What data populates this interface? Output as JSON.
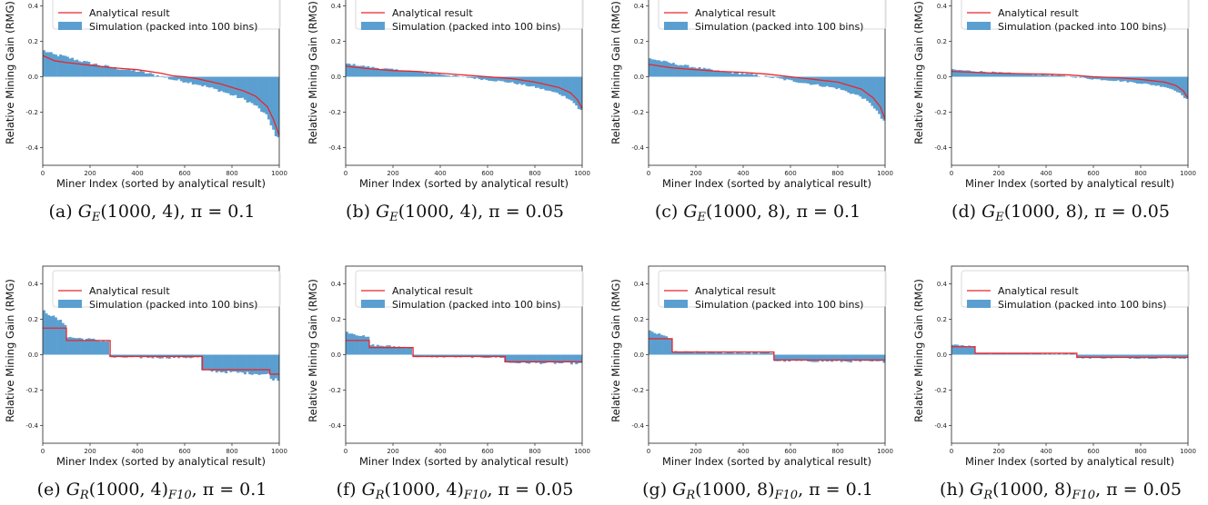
{
  "legend": {
    "line_label": "Analytical result",
    "bar_label": "Simulation (packed into 100 bins)"
  },
  "axes": {
    "xlabel": "Miner Index (sorted by analytical result)",
    "ylabel": "Relative Mining Gain (RMG)",
    "xticks": [
      0,
      200,
      400,
      600,
      800,
      1000
    ],
    "yticks": [
      -0.4,
      -0.2,
      0.0,
      0.2,
      0.4
    ],
    "xlim": [
      0,
      1000
    ],
    "ylim": [
      -0.5,
      0.5
    ]
  },
  "colors": {
    "line": "#e8262b",
    "bar": "#5b9fd0",
    "axis": "#222222"
  },
  "chart_data": [
    {
      "type": "bar",
      "id": "a",
      "caption": [
        "(a) ",
        "G",
        "E",
        "(1000, 4), π = 0.1"
      ],
      "analytical": {
        "kind": "curve",
        "points": [
          [
            0,
            0.12
          ],
          [
            50,
            0.09
          ],
          [
            100,
            0.08
          ],
          [
            200,
            0.065
          ],
          [
            300,
            0.05
          ],
          [
            400,
            0.04
          ],
          [
            500,
            0.02
          ],
          [
            550,
            0.005
          ],
          [
            600,
            0.0
          ],
          [
            650,
            -0.01
          ],
          [
            700,
            -0.025
          ],
          [
            750,
            -0.04
          ],
          [
            800,
            -0.06
          ],
          [
            850,
            -0.08
          ],
          [
            900,
            -0.11
          ],
          [
            950,
            -0.17
          ],
          [
            975,
            -0.24
          ],
          [
            1000,
            -0.33
          ]
        ]
      },
      "simulation_noise": 0.008,
      "simulation_bias": [
        [
          0,
          0.03
        ],
        [
          80,
          0.035
        ],
        [
          180,
          0.015
        ],
        [
          300,
          0.0
        ],
        [
          1000,
          0.0
        ],
        [
          990,
          -0.06
        ]
      ]
    },
    {
      "type": "bar",
      "id": "b",
      "caption": [
        "(b) ",
        "G",
        "E",
        "(1000, 4), π = 0.05"
      ],
      "analytical": {
        "kind": "curve",
        "points": [
          [
            0,
            0.06
          ],
          [
            100,
            0.045
          ],
          [
            200,
            0.035
          ],
          [
            300,
            0.03
          ],
          [
            400,
            0.02
          ],
          [
            500,
            0.01
          ],
          [
            600,
            0.0
          ],
          [
            700,
            -0.01
          ],
          [
            800,
            -0.03
          ],
          [
            900,
            -0.06
          ],
          [
            950,
            -0.09
          ],
          [
            980,
            -0.13
          ],
          [
            1000,
            -0.18
          ]
        ]
      },
      "simulation_noise": 0.005,
      "simulation_bias": [
        [
          0,
          0.015
        ],
        [
          100,
          0.01
        ],
        [
          300,
          0.0
        ],
        [
          1000,
          0.0
        ],
        [
          990,
          -0.04
        ]
      ]
    },
    {
      "type": "bar",
      "id": "c",
      "caption": [
        "(c) ",
        "G",
        "E",
        "(1000, 8), π = 0.1"
      ],
      "analytical": {
        "kind": "curve",
        "points": [
          [
            0,
            0.07
          ],
          [
            100,
            0.05
          ],
          [
            200,
            0.04
          ],
          [
            300,
            0.03
          ],
          [
            400,
            0.025
          ],
          [
            500,
            0.015
          ],
          [
            600,
            0.0
          ],
          [
            700,
            -0.015
          ],
          [
            800,
            -0.03
          ],
          [
            850,
            -0.05
          ],
          [
            900,
            -0.07
          ],
          [
            950,
            -0.12
          ],
          [
            980,
            -0.17
          ],
          [
            1000,
            -0.24
          ]
        ]
      },
      "simulation_noise": 0.006,
      "simulation_bias": [
        [
          0,
          0.035
        ],
        [
          100,
          0.025
        ],
        [
          300,
          0.0
        ],
        [
          1000,
          0.0
        ],
        [
          990,
          -0.05
        ]
      ]
    },
    {
      "type": "bar",
      "id": "d",
      "caption": [
        "(d) ",
        "G",
        "E",
        "(1000, 8), π = 0.05"
      ],
      "analytical": {
        "kind": "curve",
        "points": [
          [
            0,
            0.03
          ],
          [
            200,
            0.02
          ],
          [
            400,
            0.015
          ],
          [
            500,
            0.01
          ],
          [
            600,
            0.0
          ],
          [
            700,
            -0.005
          ],
          [
            800,
            -0.015
          ],
          [
            900,
            -0.03
          ],
          [
            950,
            -0.05
          ],
          [
            980,
            -0.08
          ],
          [
            1000,
            -0.12
          ]
        ]
      },
      "simulation_noise": 0.004,
      "simulation_bias": [
        [
          0,
          0.01
        ],
        [
          300,
          0.0
        ],
        [
          1000,
          0.0
        ],
        [
          990,
          -0.03
        ]
      ]
    },
    {
      "type": "bar",
      "id": "e",
      "caption": [
        "(e) ",
        "G",
        "R",
        "(1000, 4)",
        "F10",
        ", π = 0.1"
      ],
      "analytical": {
        "kind": "step",
        "steps": [
          [
            0,
            100,
            0.15
          ],
          [
            100,
            285,
            0.08
          ],
          [
            285,
            675,
            -0.01
          ],
          [
            675,
            960,
            -0.085
          ],
          [
            960,
            1000,
            -0.11
          ]
        ]
      },
      "simulation_noise": 0.008,
      "simulation_bias": [
        [
          0,
          0.1
        ],
        [
          100,
          0.02
        ],
        [
          285,
          -0.005
        ],
        [
          675,
          -0.005
        ],
        [
          1000,
          -0.03
        ]
      ]
    },
    {
      "type": "bar",
      "id": "f",
      "caption": [
        "(f) ",
        "G",
        "R",
        "(1000, 4)",
        "F10",
        ", π = 0.05"
      ],
      "analytical": {
        "kind": "step",
        "steps": [
          [
            0,
            100,
            0.08
          ],
          [
            100,
            285,
            0.04
          ],
          [
            285,
            675,
            -0.01
          ],
          [
            675,
            1000,
            -0.04
          ]
        ]
      },
      "simulation_noise": 0.006,
      "simulation_bias": [
        [
          0,
          0.05
        ],
        [
          100,
          0.015
        ],
        [
          285,
          0.0
        ],
        [
          675,
          -0.005
        ],
        [
          1000,
          -0.01
        ]
      ]
    },
    {
      "type": "bar",
      "id": "g",
      "caption": [
        "(g) ",
        "G",
        "R",
        "(1000, 8)",
        "F10",
        ", π = 0.1"
      ],
      "analytical": {
        "kind": "step",
        "steps": [
          [
            0,
            100,
            0.09
          ],
          [
            100,
            530,
            0.015
          ],
          [
            530,
            1000,
            -0.03
          ]
        ]
      },
      "simulation_noise": 0.006,
      "simulation_bias": [
        [
          0,
          0.045
        ],
        [
          100,
          0.0
        ],
        [
          530,
          -0.005
        ],
        [
          1000,
          -0.01
        ]
      ]
    },
    {
      "type": "bar",
      "id": "h",
      "caption": [
        "(h) ",
        "G",
        "R",
        "(1000, 8)",
        "F10",
        ", π = 0.05"
      ],
      "analytical": {
        "kind": "step",
        "steps": [
          [
            0,
            100,
            0.045
          ],
          [
            100,
            530,
            0.008
          ],
          [
            530,
            1000,
            -0.015
          ]
        ]
      },
      "simulation_noise": 0.004,
      "simulation_bias": [
        [
          0,
          0.015
        ],
        [
          100,
          0.0
        ],
        [
          530,
          -0.003
        ],
        [
          1000,
          -0.005
        ]
      ]
    }
  ]
}
